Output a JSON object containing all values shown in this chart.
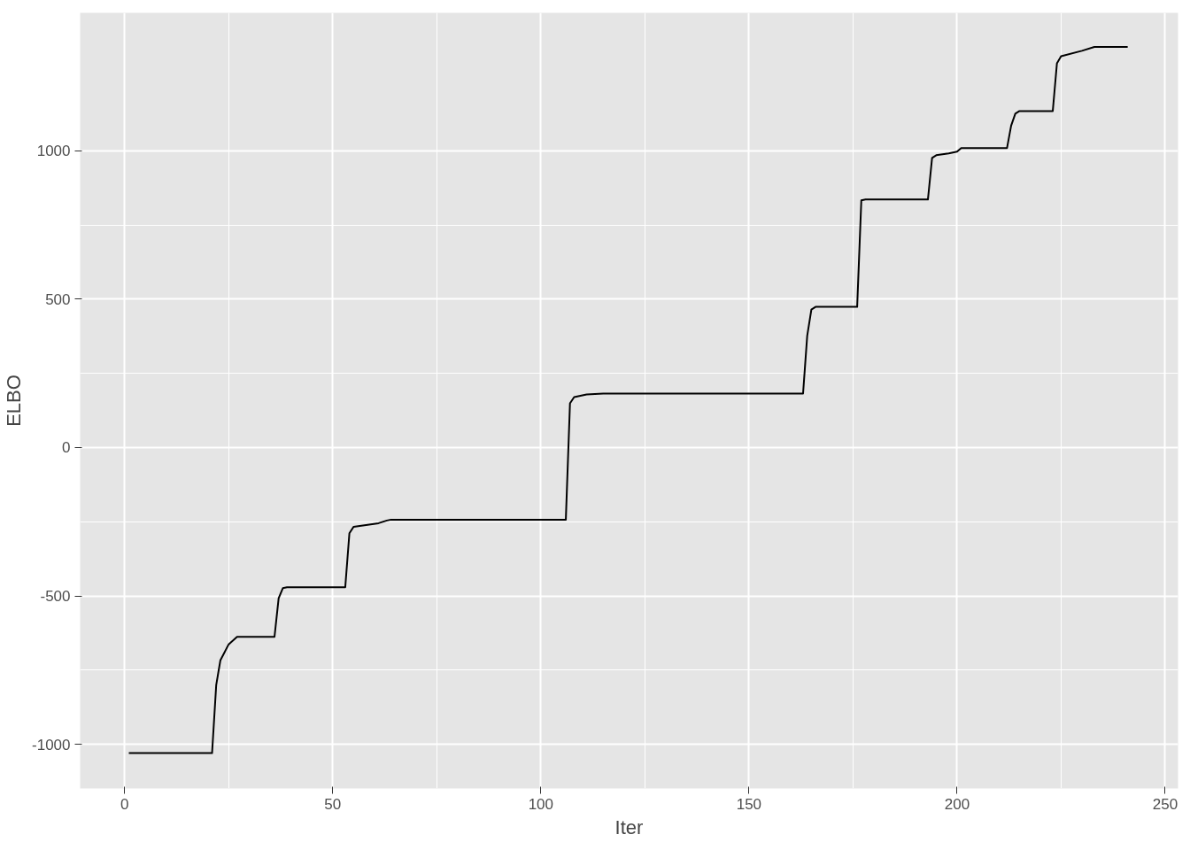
{
  "chart_data": {
    "type": "line",
    "xlabel": "Iter",
    "ylabel": "ELBO",
    "x": [
      1,
      21,
      22,
      23,
      25,
      27,
      36,
      37,
      38,
      39,
      53,
      54,
      55,
      61,
      63,
      64,
      106,
      107,
      108,
      111,
      115,
      163,
      164,
      165,
      166,
      176,
      177,
      178,
      193,
      194,
      195,
      198,
      200,
      201,
      212,
      213,
      214,
      215,
      223,
      224,
      225,
      230,
      233,
      241
    ],
    "series": [
      {
        "color": "#000000",
        "values": [
          -1030,
          -1030,
          -800,
          -717,
          -663,
          -638,
          -638,
          -508,
          -474,
          -471,
          -471,
          -289,
          -267,
          -255,
          -246,
          -243,
          -243,
          149,
          170,
          179,
          182,
          182,
          377,
          465,
          474,
          474,
          833,
          836,
          836,
          976,
          985,
          991,
          997,
          1009,
          1009,
          1085,
          1125,
          1134,
          1134,
          1295,
          1319,
          1337,
          1350,
          1350
        ]
      }
    ],
    "xlim": [
      -10.7,
      253.1
    ],
    "ylim": [
      -1149,
      1465
    ],
    "xticks": [
      0,
      50,
      100,
      150,
      200,
      250
    ],
    "yticks": [
      -1000,
      -500,
      0,
      500,
      1000
    ],
    "grid": true
  }
}
